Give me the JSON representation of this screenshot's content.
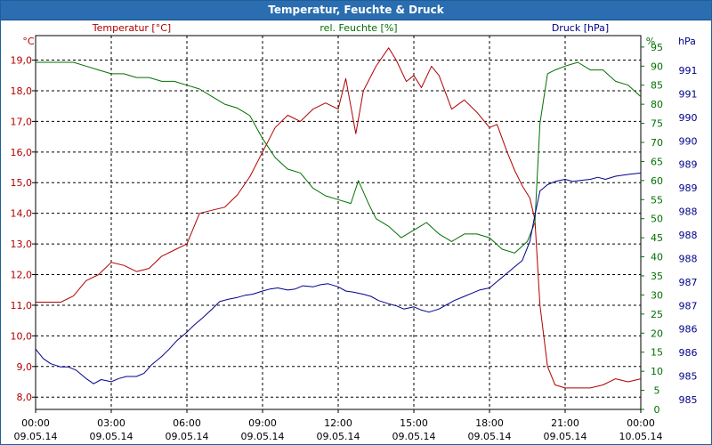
{
  "chart_data": {
    "type": "line",
    "title": "Temperatur, Feuchte & Druck",
    "x_axis": {
      "ticks": [
        {
          "time": "00:00",
          "date": "09.05.14"
        },
        {
          "time": "03:00",
          "date": "09.05.14"
        },
        {
          "time": "06:00",
          "date": "09.05.14"
        },
        {
          "time": "09:00",
          "date": "09.05.14"
        },
        {
          "time": "12:00",
          "date": "09.05.14"
        },
        {
          "time": "15:00",
          "date": "09.05.14"
        },
        {
          "time": "18:00",
          "date": "09.05.14"
        },
        {
          "time": "21:00",
          "date": "09.05.14"
        },
        {
          "time": "00:00",
          "date": "10.05.14"
        }
      ],
      "range_hours": [
        0,
        24
      ]
    },
    "axes": {
      "temperature": {
        "unit": "°C",
        "ylim": [
          7.6,
          19.8
        ],
        "ticks": [
          "8,0",
          "9,0",
          "10,0",
          "11,0",
          "12,0",
          "13,0",
          "14,0",
          "15,0",
          "16,0",
          "17,0",
          "18,0",
          "19,0"
        ]
      },
      "humidity": {
        "unit": "%",
        "ylim": [
          0,
          98
        ],
        "ticks": [
          "0",
          "5",
          "10",
          "15",
          "20",
          "25",
          "30",
          "35",
          "40",
          "45",
          "50",
          "55",
          "60",
          "65",
          "70",
          "75",
          "80",
          "85",
          "90",
          "95"
        ]
      },
      "pressure": {
        "unit": "hPa",
        "ticks": [
          "985",
          "985",
          "986",
          "986",
          "987",
          "987",
          "988",
          "988",
          "988",
          "989",
          "989",
          "990",
          "990",
          "991",
          "991"
        ]
      }
    },
    "legend": [
      "Temperatur [°C]",
      "rel. Feuchte [%]",
      "Druck [hPa]"
    ],
    "colors": {
      "temperature": "#b00000",
      "humidity": "#007000",
      "pressure": "#00008b",
      "title_bar": "#2a6db0"
    },
    "series": [
      {
        "name": "Temperatur",
        "axis": "temperature",
        "x": [
          0,
          0.5,
          1,
          1.5,
          2,
          2.5,
          3,
          3.5,
          4,
          4.5,
          5,
          5.5,
          6,
          6.5,
          7,
          7.5,
          8,
          8.5,
          9,
          9.5,
          10,
          10.5,
          11,
          11.5,
          12,
          12.3,
          12.7,
          13,
          13.5,
          14,
          14.3,
          14.7,
          15,
          15.3,
          15.7,
          16,
          16.5,
          17,
          17.5,
          18,
          18.3,
          18.7,
          19,
          19.3,
          19.6,
          19.8,
          20,
          20.3,
          20.6,
          21,
          21.5,
          22,
          22.5,
          23,
          23.5,
          24
        ],
        "values": [
          11.1,
          11.1,
          11.1,
          11.3,
          11.8,
          12.0,
          12.4,
          12.3,
          12.1,
          12.2,
          12.6,
          12.8,
          13.0,
          14.0,
          14.1,
          14.2,
          14.6,
          15.2,
          16.0,
          16.8,
          17.2,
          17.0,
          17.4,
          17.6,
          17.4,
          18.4,
          16.6,
          18.0,
          18.8,
          19.4,
          19.0,
          18.3,
          18.5,
          18.1,
          18.8,
          18.5,
          17.4,
          17.7,
          17.3,
          16.8,
          16.9,
          16.0,
          15.4,
          14.9,
          14.5,
          13.8,
          11.0,
          9.0,
          8.4,
          8.3,
          8.3,
          8.3,
          8.4,
          8.6,
          8.5,
          8.6
        ]
      },
      {
        "name": "rel. Feuchte",
        "axis": "humidity",
        "x": [
          0,
          0.5,
          1,
          1.5,
          2,
          2.5,
          3,
          3.5,
          4,
          4.5,
          5,
          5.5,
          6,
          6.5,
          7,
          7.5,
          8,
          8.5,
          9,
          9.5,
          10,
          10.5,
          11,
          11.5,
          12,
          12.5,
          12.8,
          13.2,
          13.5,
          14,
          14.5,
          15,
          15.5,
          16,
          16.5,
          17,
          17.5,
          18,
          18.5,
          19,
          19.5,
          19.8,
          20,
          20.3,
          20.6,
          21,
          21.5,
          22,
          22.5,
          23,
          23.5,
          24
        ],
        "values": [
          91,
          91,
          91,
          91,
          90,
          89,
          88,
          88,
          87,
          87,
          86,
          86,
          85,
          84,
          82,
          80,
          79,
          77,
          71,
          66,
          63,
          62,
          58,
          56,
          55,
          54,
          60,
          54,
          50,
          48,
          45,
          47,
          49,
          46,
          44,
          46,
          46,
          45,
          42,
          41,
          44,
          49,
          75,
          88,
          89,
          90,
          91,
          89,
          89,
          86,
          85,
          82
        ]
      },
      {
        "name": "Druck",
        "axis": "pressure",
        "x": [
          0,
          0.3,
          0.6,
          1,
          1.3,
          1.6,
          2,
          2.3,
          2.6,
          3,
          3.3,
          3.6,
          4,
          4.3,
          4.6,
          5,
          5.3,
          5.6,
          6,
          6.3,
          6.6,
          7,
          7.3,
          7.6,
          8,
          8.3,
          8.6,
          9,
          9.3,
          9.6,
          10,
          10.3,
          10.6,
          11,
          11.3,
          11.6,
          12,
          12.3,
          12.6,
          13,
          13.3,
          13.6,
          14,
          14.3,
          14.6,
          15,
          15.3,
          15.6,
          16,
          16.3,
          16.6,
          17,
          17.3,
          17.6,
          18,
          18.3,
          18.6,
          19,
          19.3,
          19.6,
          19.8,
          20,
          20.3,
          20.6,
          21,
          21.3,
          21.6,
          22,
          22.3,
          22.6,
          23,
          23.3,
          23.6,
          24
        ],
        "values": [
          985.86,
          985.68,
          985.58,
          985.52,
          985.52,
          985.46,
          985.3,
          985.2,
          985.28,
          985.24,
          985.3,
          985.34,
          985.34,
          985.4,
          985.56,
          985.72,
          985.86,
          986.02,
          986.18,
          986.32,
          986.44,
          986.62,
          986.76,
          986.8,
          986.84,
          986.88,
          986.9,
          986.96,
          987.0,
          987.02,
          986.98,
          987.0,
          987.06,
          987.04,
          987.08,
          987.1,
          987.04,
          986.96,
          986.94,
          986.9,
          986.86,
          986.78,
          986.72,
          986.68,
          986.62,
          986.66,
          986.6,
          986.56,
          986.62,
          986.7,
          986.78,
          986.86,
          986.92,
          986.98,
          987.02,
          987.14,
          987.26,
          987.42,
          987.54,
          987.9,
          988.4,
          988.86,
          988.98,
          989.04,
          989.08,
          989.04,
          989.06,
          989.08,
          989.12,
          989.08,
          989.14,
          989.16,
          989.18,
          989.2
        ]
      }
    ]
  }
}
